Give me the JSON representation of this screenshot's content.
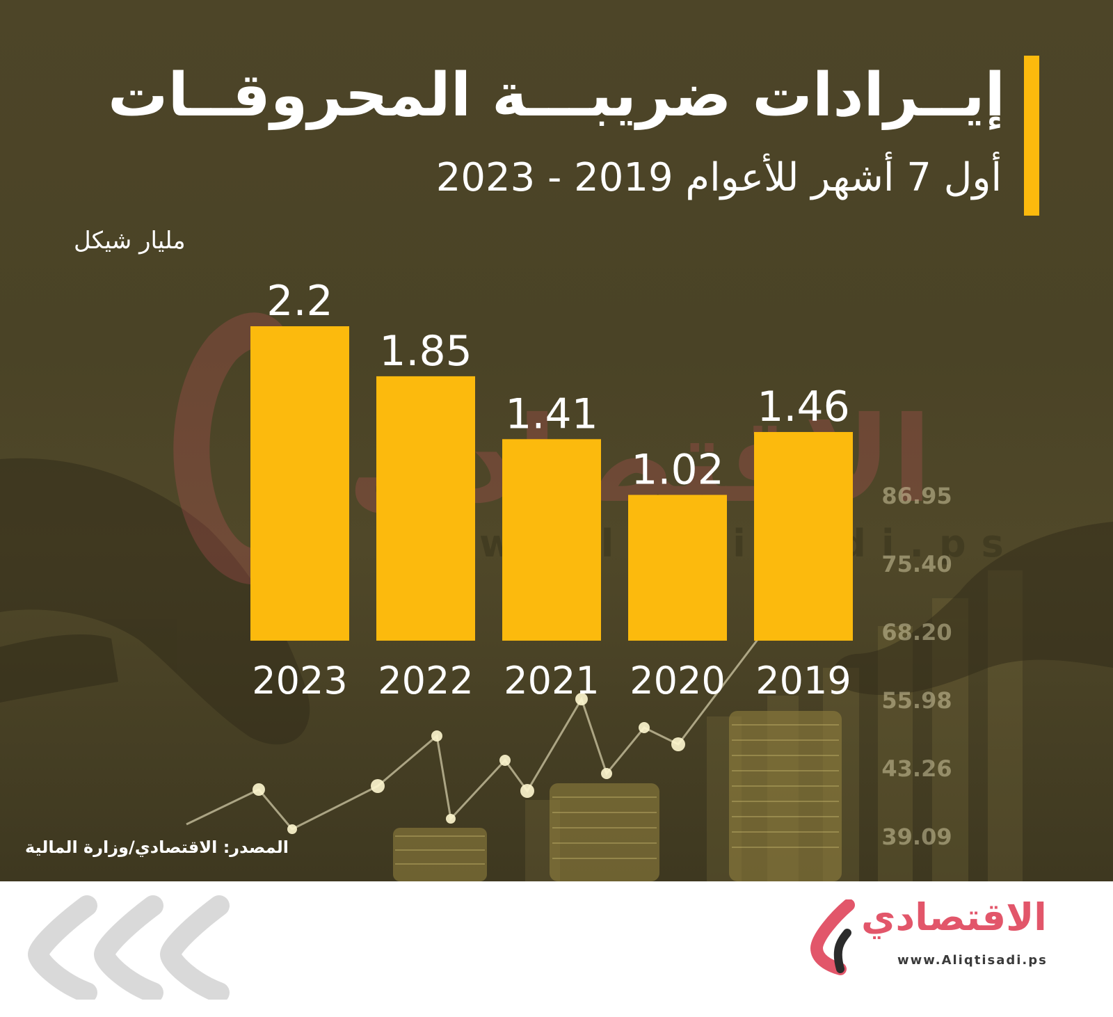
{
  "header": {
    "title": "إيــرادات ضريبـــة المحروقــات",
    "subtitle": "أول 7 أشهر للأعوام 2019 - 2023",
    "unit": "مليار شيكل"
  },
  "colors": {
    "bar": "#fcba0d",
    "accent": "#fcba0d",
    "background": "#4d4528",
    "text": "#ffffff",
    "brand": "#e2566a"
  },
  "chart_data": {
    "type": "bar",
    "title": "إيــرادات ضريبـــة المحروقــات",
    "subtitle": "أول 7 أشهر للأعوام 2019 - 2023",
    "ylabel": "مليار شيكل",
    "categories": [
      "2023",
      "2022",
      "2021",
      "2020",
      "2019"
    ],
    "values": [
      2.2,
      1.85,
      1.41,
      1.02,
      1.46
    ],
    "value_labels": [
      "2.2",
      "1.85",
      "1.41",
      "1.02",
      "1.46"
    ],
    "ylim": [
      0,
      2.2
    ],
    "grid": false,
    "legend": "none"
  },
  "background": {
    "ticker_values": [
      "86.95",
      "75.40",
      "68.20",
      "55.98",
      "43.26",
      "39.09"
    ],
    "watermark_text": "الاقتصادي",
    "watermark_url": "www.Aliqtisadi.ps"
  },
  "source": "المصدر: الاقتصادي/وزارة المالية",
  "footer": {
    "logo_name": "الاقتصادي",
    "logo_url": "www.Aliqtisadi.ps",
    "logo_icon": "aliqtisadi-logo-icon",
    "decor_icon": "chevrons-left-icon"
  }
}
